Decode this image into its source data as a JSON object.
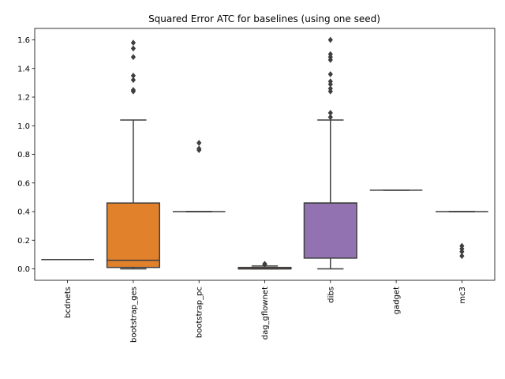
{
  "chart_data": {
    "type": "box",
    "title": "Squared Error ATC for baselines (using one seed)",
    "xlabel": "",
    "ylabel": "",
    "ylim": [
      -0.08,
      1.68
    ],
    "yticks": [
      0.0,
      0.2,
      0.4,
      0.6,
      0.8,
      1.0,
      1.2,
      1.4,
      1.6
    ],
    "ytick_labels": [
      "0.0",
      "0.2",
      "0.4",
      "0.6",
      "0.8",
      "1.0",
      "1.2",
      "1.4",
      "1.6"
    ],
    "grid": false,
    "categories": [
      "bcdnets",
      "bootstrap_ges",
      "bootstrap_pc",
      "dag_gflownet",
      "dibs",
      "gadget",
      "mc3"
    ],
    "boxes": [
      {
        "name": "bcdnets",
        "q1": 0.065,
        "median": 0.065,
        "q3": 0.065,
        "whisker_low": 0.065,
        "whisker_high": 0.065,
        "outliers": [],
        "color": "#3274a1"
      },
      {
        "name": "bootstrap_ges",
        "q1": 0.01,
        "median": 0.06,
        "q3": 0.46,
        "whisker_low": 0.0,
        "whisker_high": 1.04,
        "outliers": [
          1.24,
          1.25,
          1.32,
          1.35,
          1.48,
          1.54,
          1.58
        ],
        "color": "#e1812c"
      },
      {
        "name": "bootstrap_pc",
        "q1": 0.4,
        "median": 0.4,
        "q3": 0.4,
        "whisker_low": 0.4,
        "whisker_high": 0.4,
        "outliers": [
          0.83,
          0.84,
          0.88
        ],
        "color": "#3a923a"
      },
      {
        "name": "dag_gflownet",
        "q1": 0.0,
        "median": 0.0,
        "q3": 0.01,
        "whisker_low": 0.0,
        "whisker_high": 0.02,
        "outliers": [
          0.03,
          0.035
        ],
        "color": "#c03d3e"
      },
      {
        "name": "dibs",
        "q1": 0.075,
        "median": 0.46,
        "q3": 0.46,
        "whisker_low": 0.0,
        "whisker_high": 1.04,
        "outliers": [
          1.06,
          1.09,
          1.24,
          1.26,
          1.29,
          1.31,
          1.36,
          1.46,
          1.48,
          1.5,
          1.6
        ],
        "color": "#9372b2"
      },
      {
        "name": "gadget",
        "q1": 0.55,
        "median": 0.55,
        "q3": 0.55,
        "whisker_low": 0.55,
        "whisker_high": 0.55,
        "outliers": [],
        "color": "#845b53"
      },
      {
        "name": "mc3",
        "q1": 0.4,
        "median": 0.4,
        "q3": 0.4,
        "whisker_low": 0.4,
        "whisker_high": 0.4,
        "outliers": [
          0.09,
          0.12,
          0.14,
          0.16
        ],
        "color": "#d684bd"
      }
    ]
  }
}
